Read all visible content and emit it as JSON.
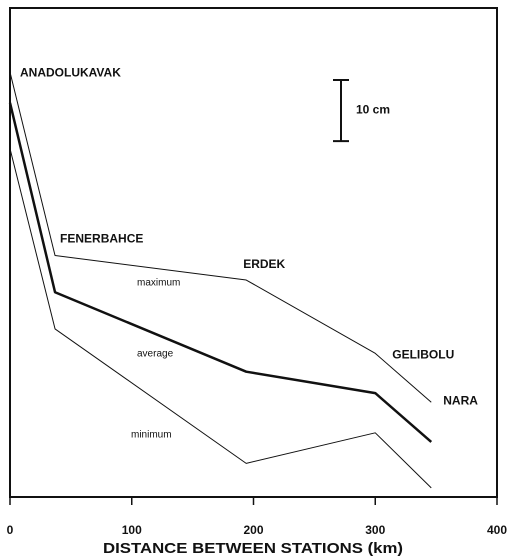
{
  "chart_data": {
    "type": "line",
    "x_label": "DISTANCE BETWEEN STATIONS (km)",
    "x": [
      0,
      37,
      194,
      300,
      346
    ],
    "point_labels": [
      "ANADOLUKAVAK",
      "FENERBAHCE",
      "ERDEK",
      "GELIBOLU",
      "NARA"
    ],
    "series": [
      {
        "name": "maximum",
        "color": "#111111",
        "width": 1,
        "values": [
          69.5,
          39.5,
          35.5,
          23.5,
          15.5
        ]
      },
      {
        "name": "average",
        "color": "#111111",
        "width": 2.5,
        "values": [
          64.5,
          33.5,
          20.5,
          17,
          9
        ]
      },
      {
        "name": "minimum",
        "color": "#111111",
        "width": 1,
        "values": [
          57,
          27.5,
          5.5,
          10.5,
          1.5
        ]
      }
    ],
    "xlim": [
      0,
      400
    ],
    "xticks": [
      0,
      100,
      200,
      300,
      400
    ],
    "ylim": [
      0,
      80
    ],
    "scale_bar": {
      "value": 10,
      "label": "10 cm"
    }
  }
}
